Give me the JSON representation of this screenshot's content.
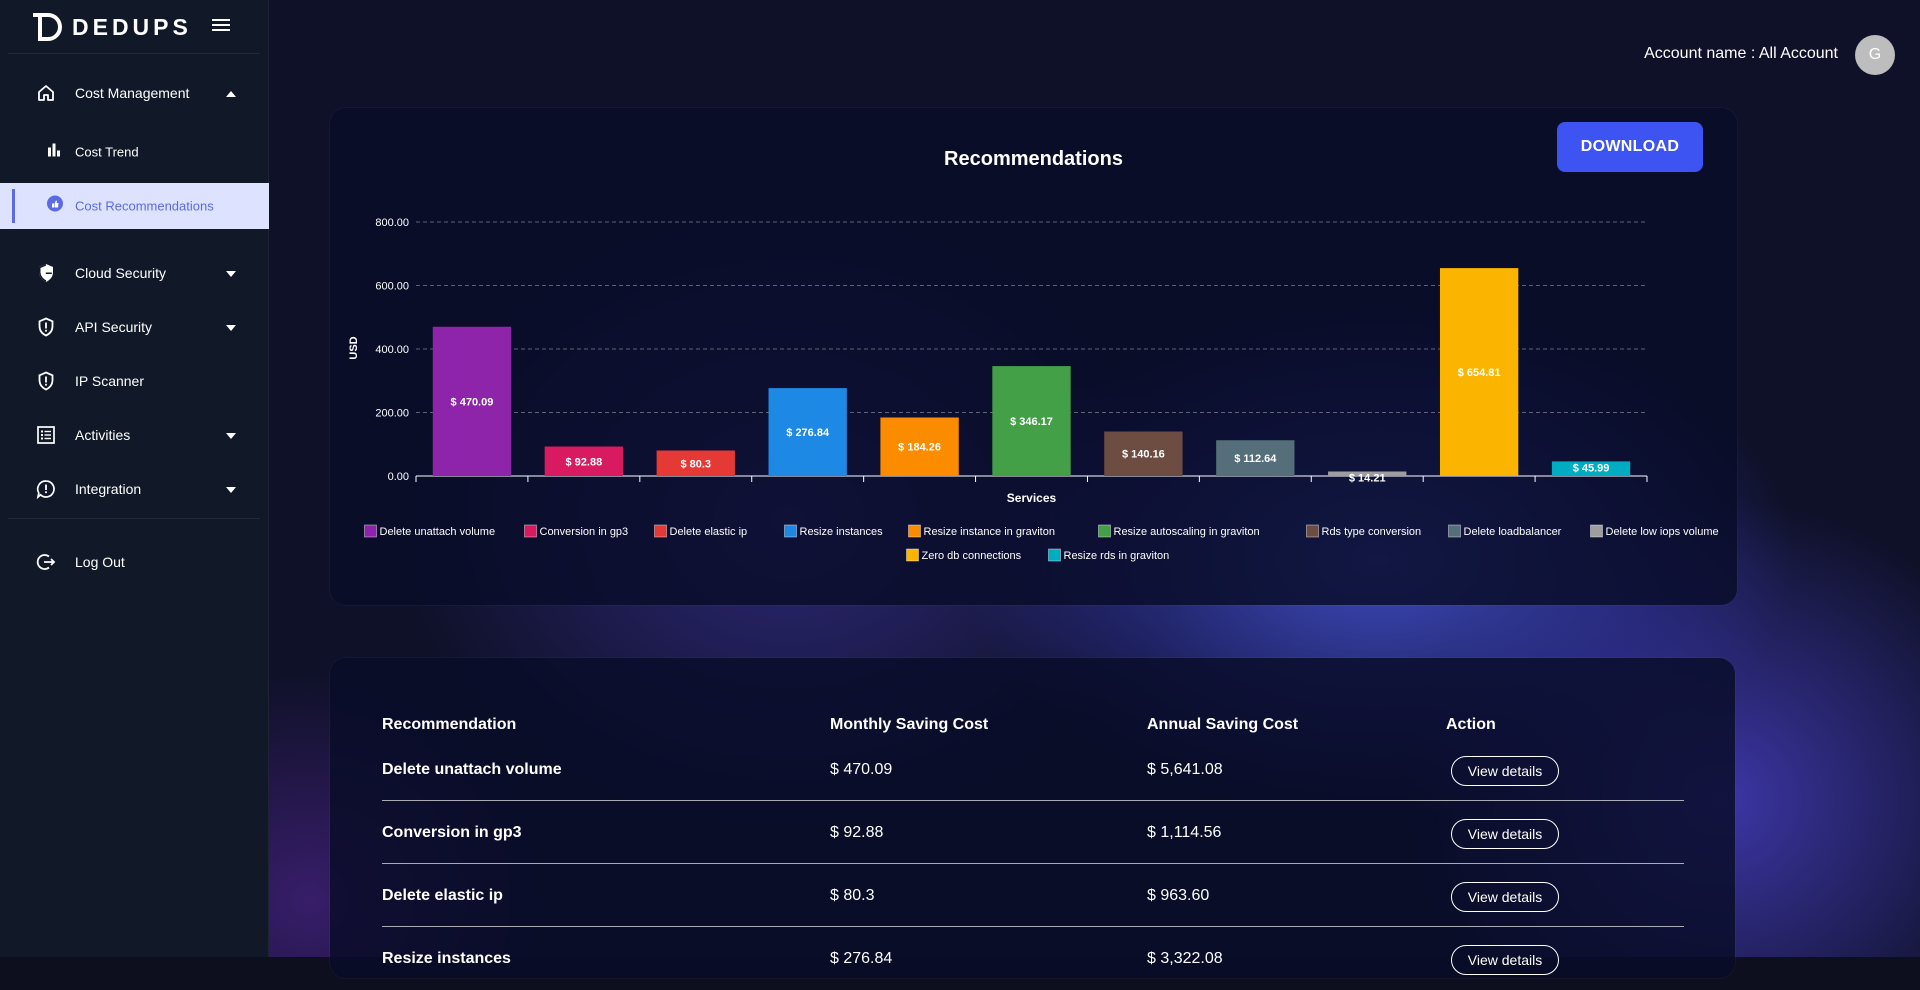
{
  "brand": {
    "name": "DEDUPS"
  },
  "sidebar": {
    "items": [
      {
        "label": "Cost Management",
        "icon": "home-icon",
        "expanded": true
      },
      {
        "label": "Cost Trend",
        "icon": "bar-chart-icon",
        "sub": true
      },
      {
        "label": "Cost Recommendations",
        "icon": "thumb-up-icon",
        "sub": true,
        "active": true
      },
      {
        "label": "Cloud Security",
        "icon": "shield-icon"
      },
      {
        "label": "API Security",
        "icon": "shield-alert-icon"
      },
      {
        "label": "IP Scanner",
        "icon": "shield-alert-icon"
      },
      {
        "label": "Activities",
        "icon": "list-icon"
      },
      {
        "label": "Integration",
        "icon": "chat-alert-icon"
      },
      {
        "label": "Log Out",
        "icon": "logout-icon"
      }
    ]
  },
  "header": {
    "account_label": "Account name : All Account",
    "avatar_initial": "G"
  },
  "chart_card": {
    "title": "Recommendations",
    "download_label": "DOWNLOAD"
  },
  "chart_data": {
    "type": "bar",
    "title": "Recommendations",
    "xlabel": "Services",
    "ylabel": "USD",
    "ylim": [
      0,
      800
    ],
    "yticks": [
      "0.00",
      "200.00",
      "400.00",
      "600.00",
      "800.00"
    ],
    "grid": true,
    "legend_position": "bottom",
    "categories": [
      "Delete unattach volume",
      "Conversion in gp3",
      "Delete elastic ip",
      "Resize instances",
      "Resize instance in graviton",
      "Resize autoscaling in graviton",
      "Rds type conversion",
      "Delete loadbalancer",
      "Delete low iops volume",
      "Zero db connections",
      "Resize rds in graviton"
    ],
    "values": [
      470.09,
      92.88,
      80.3,
      276.84,
      184.26,
      346.17,
      140.16,
      112.64,
      14.21,
      654.81,
      45.99
    ],
    "data_labels": [
      "$ 470.09",
      "$ 92.88",
      "$ 80.3",
      "$ 276.84",
      "$ 184.26",
      "$ 346.17",
      "$ 140.16",
      "$ 112.64",
      "$ 14.21",
      "$ 654.81",
      "$ 45.99"
    ],
    "colors": [
      "#8e24aa",
      "#d81b60",
      "#e53935",
      "#1e88e5",
      "#fb8c00",
      "#43a047",
      "#6d4c41",
      "#546e7a",
      "#9e9e9e",
      "#fbb500",
      "#00acc1"
    ]
  },
  "table": {
    "headers": [
      "Recommendation",
      "Monthly Saving Cost",
      "Annual Saving Cost",
      "Action"
    ],
    "rows": [
      {
        "recommendation": "Delete unattach volume",
        "monthly": "$ 470.09",
        "annual": "$ 5,641.08",
        "action": "View details"
      },
      {
        "recommendation": "Conversion in gp3",
        "monthly": "$ 92.88",
        "annual": "$ 1,114.56",
        "action": "View details"
      },
      {
        "recommendation": "Delete elastic ip",
        "monthly": "$ 80.3",
        "annual": "$ 963.60",
        "action": "View details"
      },
      {
        "recommendation": "Resize instances",
        "monthly": "$ 276.84",
        "annual": "$ 3,322.08",
        "action": "View details"
      }
    ]
  }
}
